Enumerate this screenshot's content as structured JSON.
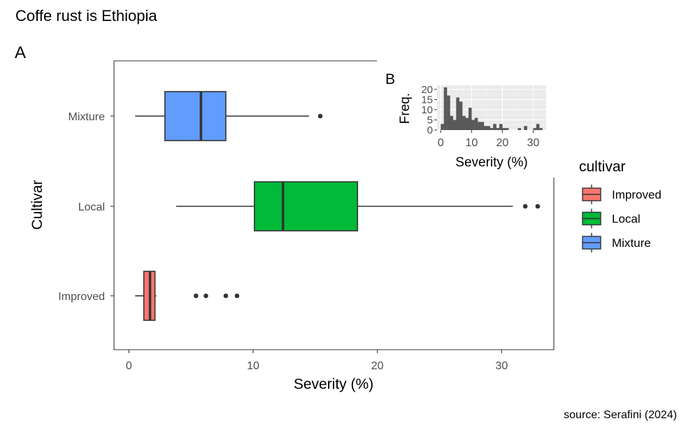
{
  "title": "Coffe rust is Ethiopia",
  "caption": "source: Serafini (2024)",
  "chart_data": [
    {
      "panel_tag": "A",
      "type": "boxplot",
      "orientation": "horizontal",
      "xlabel": "Severity (%)",
      "ylabel": "Cultivar",
      "xlim": [
        -1.2,
        34.2
      ],
      "x_ticks": [
        0,
        10,
        20,
        30
      ],
      "categories": [
        "Improved",
        "Local",
        "Mixture"
      ],
      "boxes": [
        {
          "category": "Improved",
          "whisker_low": 0.5,
          "q1": 1.2,
          "median": 1.7,
          "q3": 2.1,
          "whisker_high": 2.2,
          "outliers": [
            5.4,
            6.2,
            7.8,
            8.7
          ],
          "color": "#F8766D"
        },
        {
          "category": "Local",
          "whisker_low": 3.8,
          "q1": 10.1,
          "median": 12.4,
          "q3": 18.4,
          "whisker_high": 30.9,
          "outliers": [
            31.9,
            32.9
          ],
          "color": "#00BA38"
        },
        {
          "category": "Mixture",
          "whisker_low": 0.5,
          "q1": 2.9,
          "median": 5.8,
          "q3": 7.8,
          "whisker_high": 14.5,
          "outliers": [
            15.4
          ],
          "color": "#619CFF"
        }
      ],
      "legend": {
        "title": "cultivar",
        "placement": "right",
        "entries": [
          {
            "label": "Improved",
            "color": "#F8766D"
          },
          {
            "label": "Local",
            "color": "#00BA38"
          },
          {
            "label": "Mixture",
            "color": "#619CFF"
          }
        ]
      },
      "grid": false
    },
    {
      "panel_tag": "B",
      "type": "histogram",
      "xlabel": "Severity (%)",
      "ylabel": "Freq.",
      "xlim": [
        -1.2,
        34.2
      ],
      "ylim": [
        0,
        22
      ],
      "x_ticks": [
        0,
        10,
        20,
        30
      ],
      "y_ticks": [
        0,
        5,
        10,
        15,
        20
      ],
      "bin_width": 1,
      "bin_starts": [
        0,
        1,
        2,
        3,
        4,
        5,
        6,
        7,
        8,
        9,
        10,
        11,
        12,
        13,
        14,
        15,
        16,
        17,
        18,
        19,
        20,
        21,
        22,
        23,
        24,
        25,
        26,
        27,
        28,
        29,
        30,
        31,
        32,
        33
      ],
      "counts": [
        3,
        21,
        17,
        7,
        5,
        16,
        14,
        7,
        6,
        11,
        5,
        6,
        4,
        4,
        2,
        2,
        1,
        3,
        1,
        3,
        1,
        1,
        0,
        0,
        0,
        1,
        0,
        2,
        0,
        0,
        1,
        3,
        1,
        0
      ],
      "bar_color": "#595959",
      "grid": true,
      "placement": "inset-top-right"
    }
  ]
}
